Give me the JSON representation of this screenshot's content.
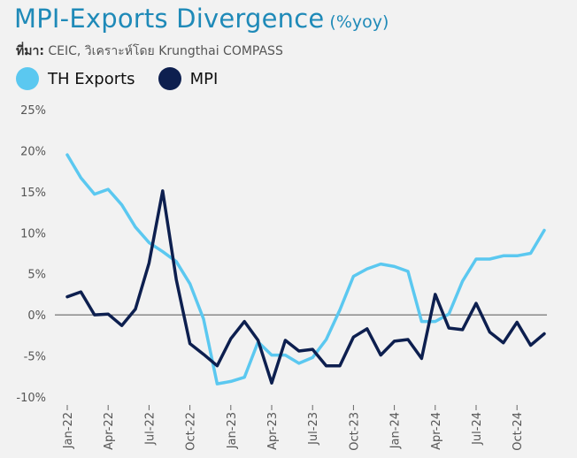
{
  "header": {
    "title": "MPI-Exports Divergence",
    "subtitle": "(%yoy)",
    "source_prefix": "ที่มา:",
    "source_text": " CEIC, วิเคราะห์โดย Krungthai COMPASS"
  },
  "colors": {
    "th_exports": "#5bc8f0",
    "mpi": "#0d1f4f",
    "zero_line": "#555555"
  },
  "chart_data": {
    "type": "line",
    "x": [
      "Jan-22",
      "Feb-22",
      "Mar-22",
      "Apr-22",
      "May-22",
      "Jun-22",
      "Jul-22",
      "Aug-22",
      "Sep-22",
      "Oct-22",
      "Nov-22",
      "Dec-22",
      "Jan-23",
      "Feb-23",
      "Mar-23",
      "Apr-23",
      "May-23",
      "Jun-23",
      "Jul-23",
      "Aug-23",
      "Sep-23",
      "Oct-23",
      "Nov-23",
      "Dec-23",
      "Jan-24",
      "Feb-24",
      "Mar-24",
      "Apr-24",
      "May-24",
      "Jun-24",
      "Jul-24",
      "Aug-24",
      "Sep-24",
      "Oct-24",
      "Nov-24",
      "Dec-24"
    ],
    "xtick_labels": [
      "Jan-22",
      "Apr-22",
      "Jul-22",
      "Oct-22",
      "Jan-23",
      "Apr-23",
      "Jul-23",
      "Oct-23",
      "Jan-24",
      "Apr-24",
      "Jul-24",
      "Oct-24"
    ],
    "series": [
      {
        "name": "TH Exports",
        "color": "#5bc8f0",
        "values": [
          19.5,
          16.7,
          14.7,
          15.3,
          13.4,
          10.7,
          8.8,
          7.7,
          6.5,
          3.8,
          -0.5,
          -8.4,
          -8.1,
          -7.6,
          -3.3,
          -4.9,
          -4.9,
          -5.9,
          -5.2,
          -3.0,
          0.6,
          4.7,
          5.6,
          6.2,
          5.9,
          5.3,
          -0.8,
          -0.8,
          0.1,
          4.1,
          6.8,
          6.8,
          7.2,
          7.2,
          7.5,
          10.3
        ]
      },
      {
        "name": "MPI",
        "color": "#0d1f4f",
        "values": [
          2.2,
          2.8,
          0.0,
          0.1,
          -1.3,
          0.7,
          6.3,
          15.1,
          4.3,
          -3.5,
          -4.8,
          -6.2,
          -2.9,
          -0.8,
          -3.1,
          -8.3,
          -3.1,
          -4.4,
          -4.2,
          -6.2,
          -6.2,
          -2.7,
          -1.7,
          -4.9,
          -3.2,
          -3.0,
          -5.3,
          2.5,
          -1.6,
          -1.8,
          1.4,
          -2.1,
          -3.4,
          -0.9,
          -3.7,
          -2.3
        ]
      }
    ],
    "yticks": [
      "25%",
      "20%",
      "15%",
      "10%",
      "5%",
      "0%",
      "-5%",
      "-10%"
    ],
    "ylim": [
      -10,
      25
    ],
    "grid": false,
    "legend_position": "top-left"
  }
}
